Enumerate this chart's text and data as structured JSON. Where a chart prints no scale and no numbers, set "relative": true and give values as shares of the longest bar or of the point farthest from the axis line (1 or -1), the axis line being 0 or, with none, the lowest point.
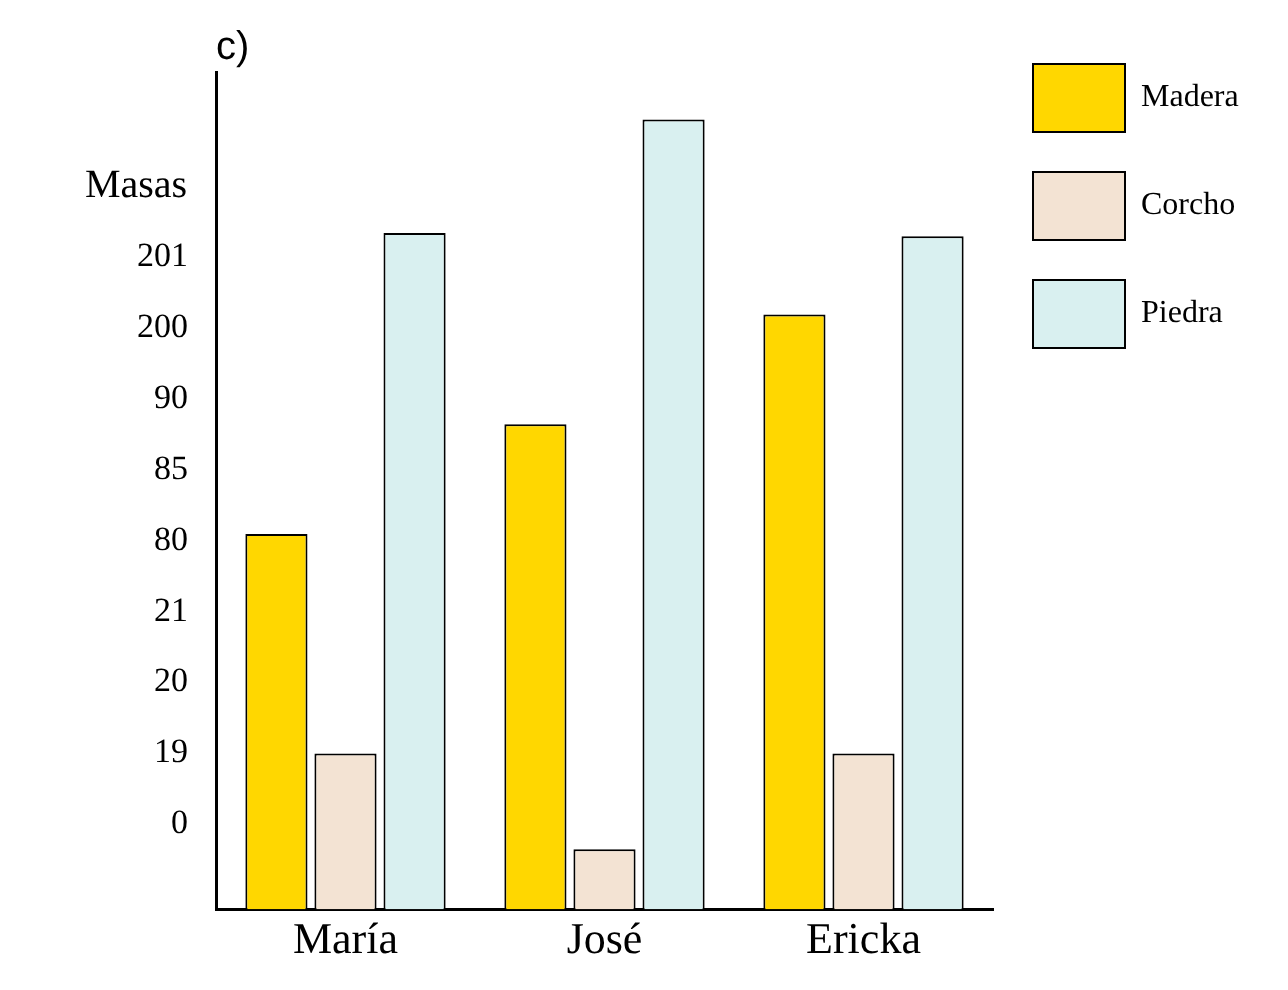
{
  "chart_data": {
    "type": "bar",
    "title": "c)",
    "ylabel": "Masas",
    "categories": [
      "María",
      "José",
      "Ericka"
    ],
    "series": [
      {
        "name": "Madera",
        "color": "#ffd700",
        "values": [
          0.475,
          0.614,
          0.753
        ]
      },
      {
        "name": "Corcho",
        "color": "#f3e3d3",
        "values": [
          0.197,
          0.076,
          0.197
        ]
      },
      {
        "name": "Piedra",
        "color": "#d9f0f0",
        "values": [
          0.856,
          1,
          0.852
        ]
      }
    ],
    "relative": true,
    "annotations": [
      "201",
      "200",
      "90",
      "85",
      "80",
      "21",
      "20",
      "19",
      "0"
    ],
    "legend": "top right"
  }
}
